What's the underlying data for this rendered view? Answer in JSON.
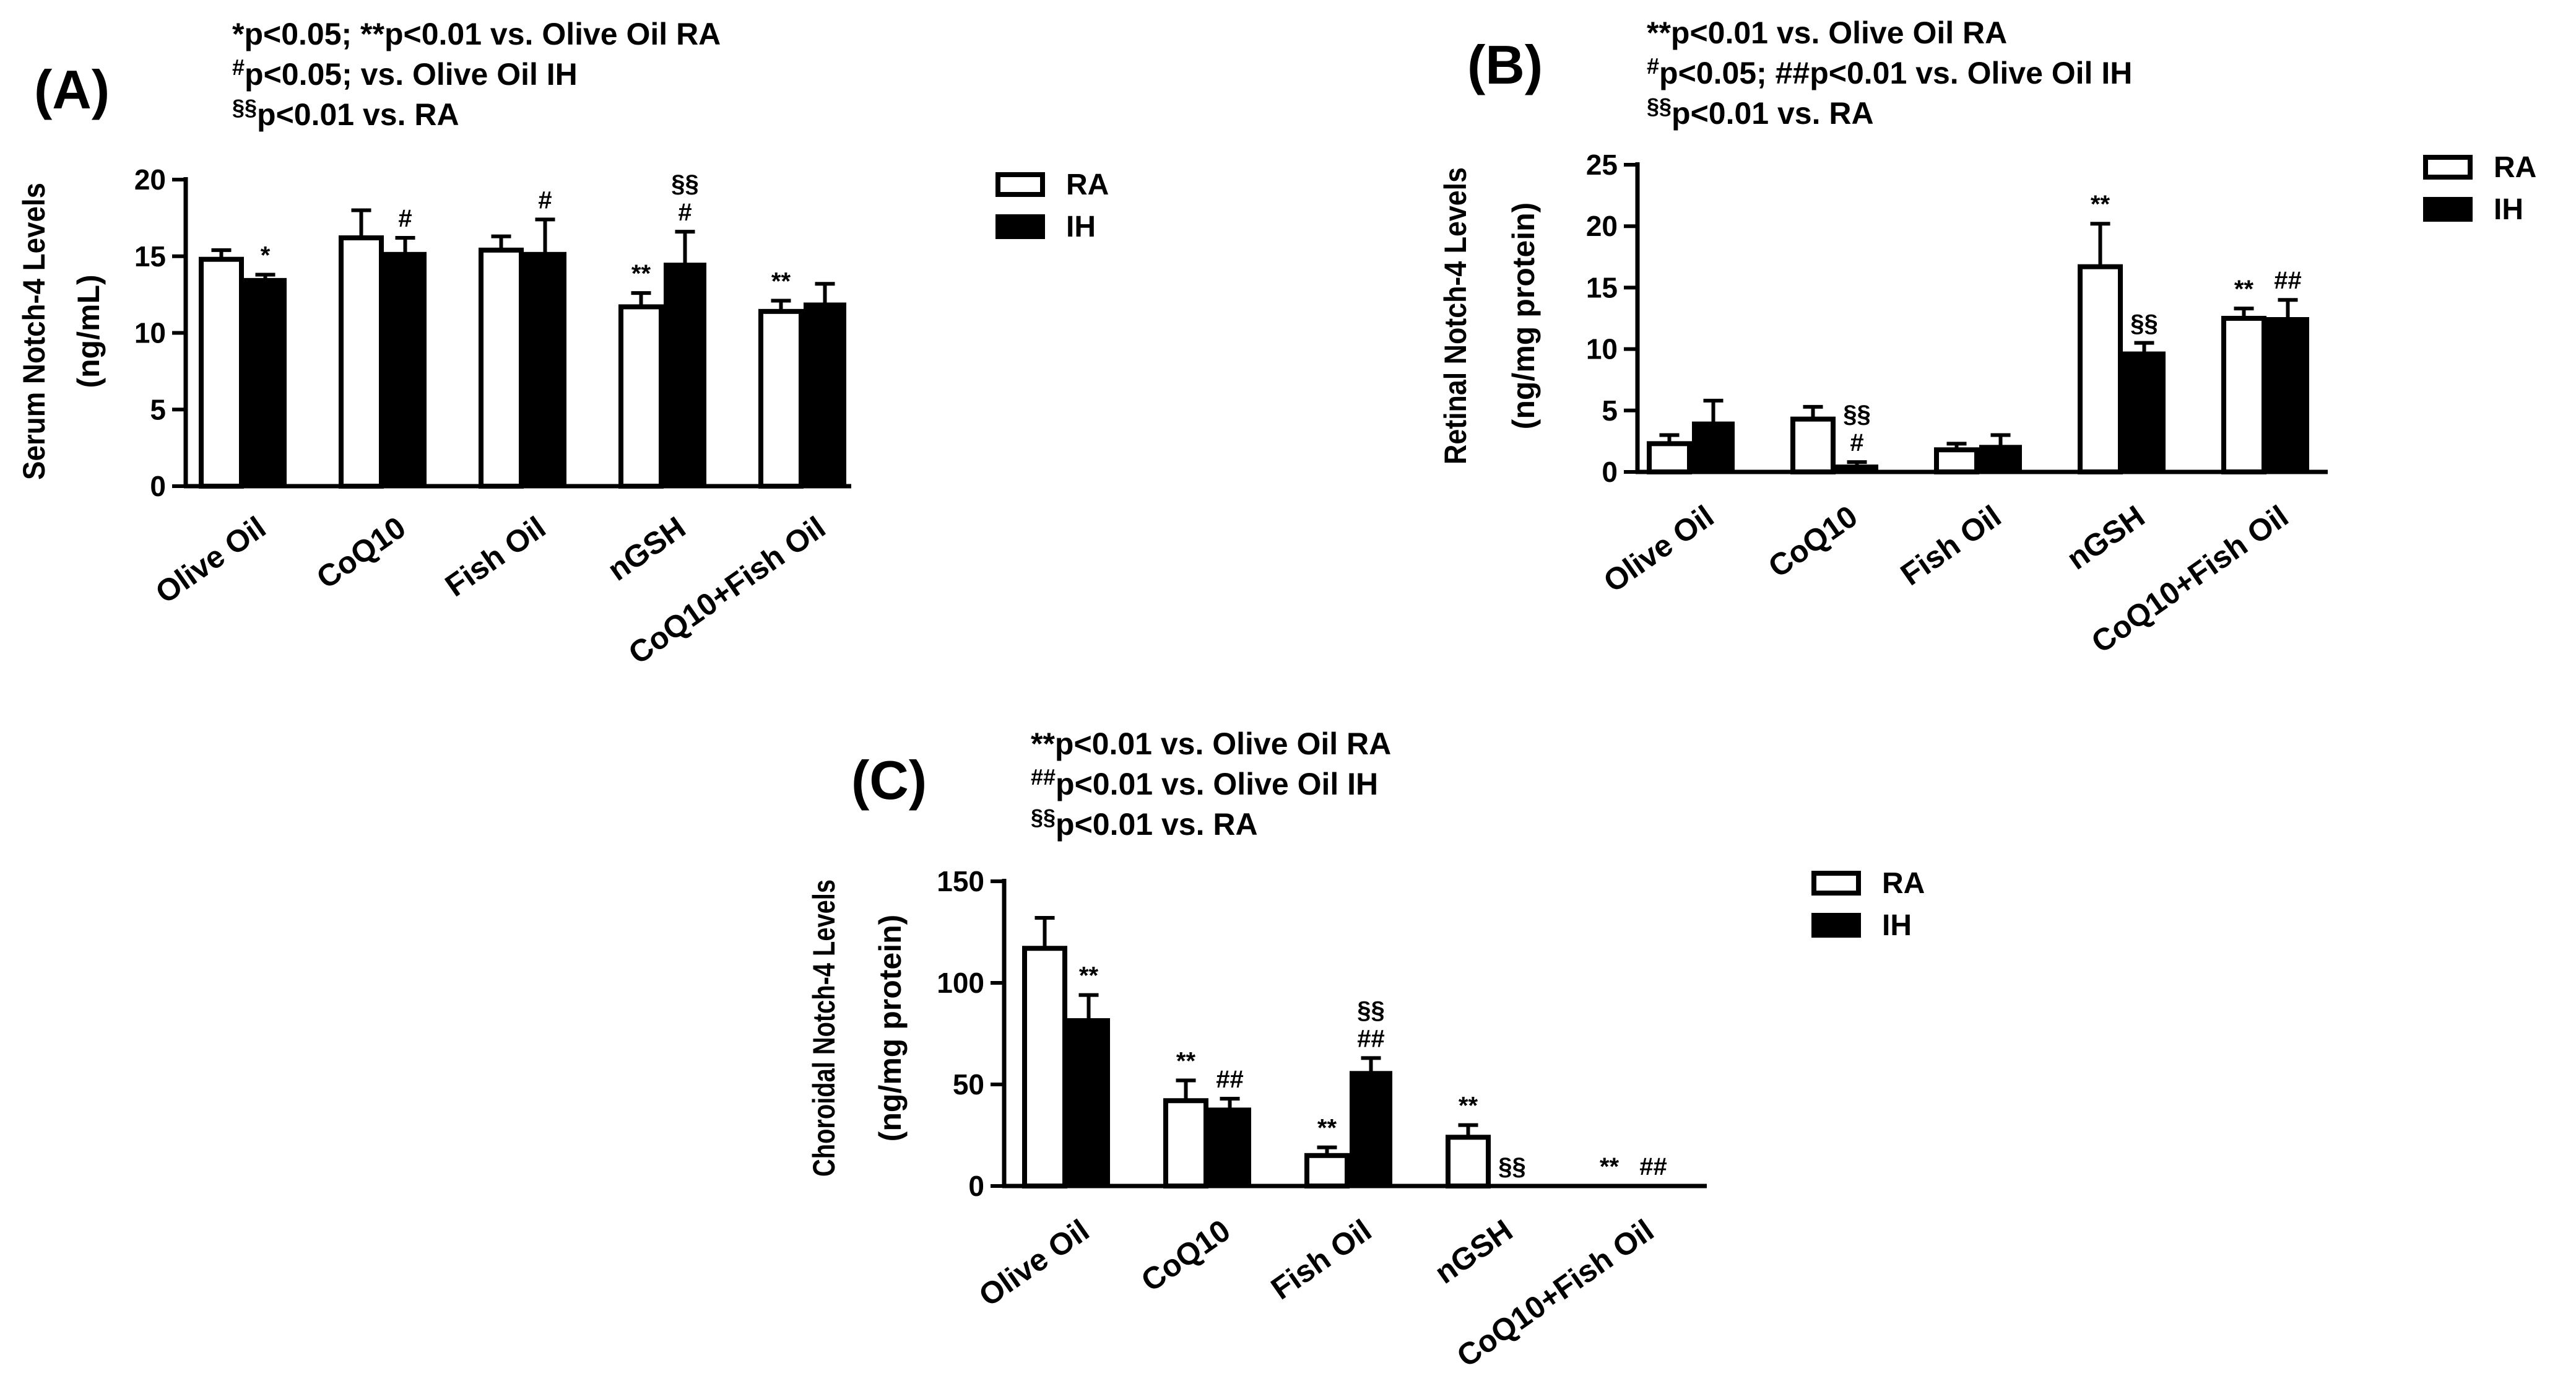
{
  "colors": {
    "ra_fill": "#ffffff",
    "ih_fill": "#000000",
    "stroke": "#000000"
  },
  "chart_data": [
    {
      "type": "bar",
      "panel_label": "(A)",
      "notes": [
        {
          "sup": "",
          "text": "*p<0.05; **p<0.01 vs. Olive Oil RA"
        },
        {
          "sup": "#",
          "text": "p<0.05; vs. Olive Oil IH"
        },
        {
          "sup": "§§",
          "text": "p<0.01 vs. RA"
        }
      ],
      "ylabel": "Serum Notch-4 Levels",
      "ylabel2": "(ng/mL)",
      "ylim": [
        0,
        20
      ],
      "yticks": [
        0,
        5,
        10,
        15,
        20
      ],
      "categories": [
        "Olive Oil",
        "CoQ10",
        "Fish Oil",
        "nGSH",
        "CoQ10+Fish Oil"
      ],
      "legend": [
        "RA",
        "IH"
      ],
      "series": [
        {
          "name": "RA",
          "values": [
            14.8,
            16.2,
            15.4,
            11.7,
            11.4
          ],
          "errors": [
            0.6,
            1.8,
            0.9,
            0.9,
            0.7
          ],
          "annotations": [
            "",
            "",
            "",
            "**",
            "**"
          ]
        },
        {
          "name": "IH",
          "values": [
            13.5,
            15.2,
            15.2,
            14.5,
            11.9
          ],
          "errors": [
            0.3,
            1.0,
            2.2,
            2.1,
            1.3
          ],
          "annotations": [
            "*",
            "#",
            "#",
            "§§\n#",
            ""
          ]
        }
      ]
    },
    {
      "type": "bar",
      "panel_label": "(B)",
      "notes": [
        {
          "sup": "",
          "text": "**p<0.01 vs. Olive Oil RA"
        },
        {
          "sup": "#",
          "text": "p<0.05; ##p<0.01 vs. Olive Oil IH"
        },
        {
          "sup": "§§",
          "text": "p<0.01 vs. RA"
        }
      ],
      "ylabel": "Retinal Notch-4 Levels",
      "ylabel2": "(ng/mg protein)",
      "ylim": [
        0,
        25
      ],
      "yticks": [
        0,
        5,
        10,
        15,
        20,
        25
      ],
      "categories": [
        "Olive Oil",
        "CoQ10",
        "Fish Oil",
        "nGSH",
        "CoQ10+Fish Oil"
      ],
      "legend": [
        "RA",
        "IH"
      ],
      "series": [
        {
          "name": "RA",
          "values": [
            2.3,
            4.3,
            1.8,
            16.7,
            12.5
          ],
          "errors": [
            0.7,
            1.0,
            0.5,
            3.5,
            0.8
          ],
          "annotations": [
            "",
            "",
            "",
            "**",
            "**"
          ]
        },
        {
          "name": "IH",
          "values": [
            4.0,
            0.5,
            2.1,
            9.7,
            12.5
          ],
          "errors": [
            1.8,
            0.3,
            0.9,
            0.8,
            1.5
          ],
          "annotations": [
            "",
            "§§\n#",
            "",
            "§§",
            "##"
          ]
        }
      ]
    },
    {
      "type": "bar",
      "panel_label": "(C)",
      "notes": [
        {
          "sup": "",
          "text": "**p<0.01 vs. Olive Oil RA"
        },
        {
          "sup": "##",
          "text": "p<0.01 vs. Olive Oil IH"
        },
        {
          "sup": "§§",
          "text": "p<0.01 vs. RA"
        }
      ],
      "ylabel": "Choroidal Notch-4 Levels",
      "ylabel2": "(ng/mg protein)",
      "ylim": [
        0,
        150
      ],
      "yticks": [
        0,
        50,
        100,
        150
      ],
      "categories": [
        "Olive Oil",
        "CoQ10",
        "Fish Oil",
        "nGSH",
        "CoQ10+Fish Oil"
      ],
      "legend": [
        "RA",
        "IH"
      ],
      "series": [
        {
          "name": "RA",
          "values": [
            117,
            42,
            15,
            24,
            0
          ],
          "errors": [
            15,
            10,
            4,
            6,
            0
          ],
          "annotations": [
            "",
            "**",
            "**",
            "**",
            "**"
          ]
        },
        {
          "name": "IH",
          "values": [
            82,
            38,
            56,
            0,
            0
          ],
          "errors": [
            12,
            5,
            7,
            0,
            0
          ],
          "annotations": [
            "**",
            "##",
            "§§\n##",
            "§§",
            "##"
          ]
        }
      ]
    }
  ]
}
